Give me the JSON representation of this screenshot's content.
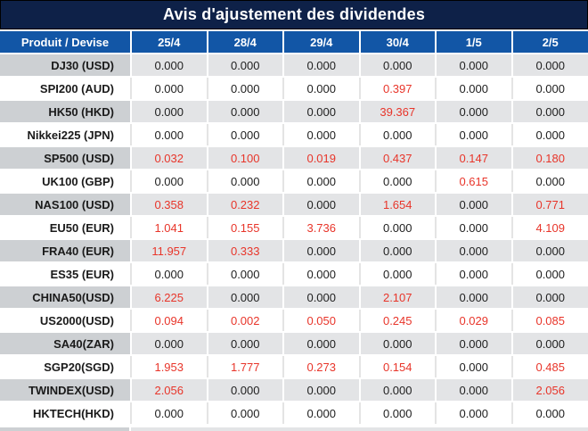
{
  "title": "Avis d'ajustement des dividendes",
  "colors": {
    "title_navy": "#0e2148",
    "header_blue": "#1256a6",
    "negative_red": "#e8352a",
    "row_gray_label": "#cdd0d3",
    "row_gray_cell": "#e3e4e6",
    "row_white": "#ffffff"
  },
  "table": {
    "product_header": "Produit / Devise",
    "date_headers": [
      "25/4",
      "28/4",
      "29/4",
      "30/4",
      "1/5",
      "2/5"
    ],
    "rows": [
      {
        "label": "DJ30 (USD)",
        "values": [
          "0.000",
          "0.000",
          "0.000",
          "0.000",
          "0.000",
          "0.000"
        ],
        "red": [
          false,
          false,
          false,
          false,
          false,
          false
        ]
      },
      {
        "label": "SPI200 (AUD)",
        "values": [
          "0.000",
          "0.000",
          "0.000",
          "0.397",
          "0.000",
          "0.000"
        ],
        "red": [
          false,
          false,
          false,
          true,
          false,
          false
        ]
      },
      {
        "label": "HK50 (HKD)",
        "values": [
          "0.000",
          "0.000",
          "0.000",
          "39.367",
          "0.000",
          "0.000"
        ],
        "red": [
          false,
          false,
          false,
          true,
          false,
          false
        ]
      },
      {
        "label": "Nikkei225 (JPN)",
        "values": [
          "0.000",
          "0.000",
          "0.000",
          "0.000",
          "0.000",
          "0.000"
        ],
        "red": [
          false,
          false,
          false,
          false,
          false,
          false
        ]
      },
      {
        "label": "SP500 (USD)",
        "values": [
          "0.032",
          "0.100",
          "0.019",
          "0.437",
          "0.147",
          "0.180"
        ],
        "red": [
          true,
          true,
          true,
          true,
          true,
          true
        ]
      },
      {
        "label": "UK100 (GBP)",
        "values": [
          "0.000",
          "0.000",
          "0.000",
          "0.000",
          "0.615",
          "0.000"
        ],
        "red": [
          false,
          false,
          false,
          false,
          true,
          false
        ]
      },
      {
        "label": "NAS100 (USD)",
        "values": [
          "0.358",
          "0.232",
          "0.000",
          "1.654",
          "0.000",
          "0.771"
        ],
        "red": [
          true,
          true,
          false,
          true,
          false,
          true
        ]
      },
      {
        "label": "EU50 (EUR)",
        "values": [
          "1.041",
          "0.155",
          "3.736",
          "0.000",
          "0.000",
          "4.109"
        ],
        "red": [
          true,
          true,
          true,
          false,
          false,
          true
        ]
      },
      {
        "label": "FRA40 (EUR)",
        "values": [
          "11.957",
          "0.333",
          "0.000",
          "0.000",
          "0.000",
          "0.000"
        ],
        "red": [
          true,
          true,
          false,
          false,
          false,
          false
        ]
      },
      {
        "label": "ES35 (EUR)",
        "values": [
          "0.000",
          "0.000",
          "0.000",
          "0.000",
          "0.000",
          "0.000"
        ],
        "red": [
          false,
          false,
          false,
          false,
          false,
          false
        ]
      },
      {
        "label": "CHINA50(USD)",
        "values": [
          "6.225",
          "0.000",
          "0.000",
          "2.107",
          "0.000",
          "0.000"
        ],
        "red": [
          true,
          false,
          false,
          true,
          false,
          false
        ]
      },
      {
        "label": "US2000(USD)",
        "values": [
          "0.094",
          "0.002",
          "0.050",
          "0.245",
          "0.029",
          "0.085"
        ],
        "red": [
          true,
          true,
          true,
          true,
          true,
          true
        ]
      },
      {
        "label": "SA40(ZAR)",
        "values": [
          "0.000",
          "0.000",
          "0.000",
          "0.000",
          "0.000",
          "0.000"
        ],
        "red": [
          false,
          false,
          false,
          false,
          false,
          false
        ]
      },
      {
        "label": "SGP20(SGD)",
        "values": [
          "1.953",
          "1.777",
          "0.273",
          "0.154",
          "0.000",
          "0.485"
        ],
        "red": [
          true,
          true,
          true,
          true,
          false,
          true
        ]
      },
      {
        "label": "TWINDEX(USD)",
        "values": [
          "2.056",
          "0.000",
          "0.000",
          "0.000",
          "0.000",
          "2.056"
        ],
        "red": [
          true,
          false,
          false,
          false,
          false,
          true
        ]
      },
      {
        "label": "HKTECH(HKD)",
        "values": [
          "0.000",
          "0.000",
          "0.000",
          "0.000",
          "0.000",
          "0.000"
        ],
        "red": [
          false,
          false,
          false,
          false,
          false,
          false
        ]
      }
    ]
  }
}
